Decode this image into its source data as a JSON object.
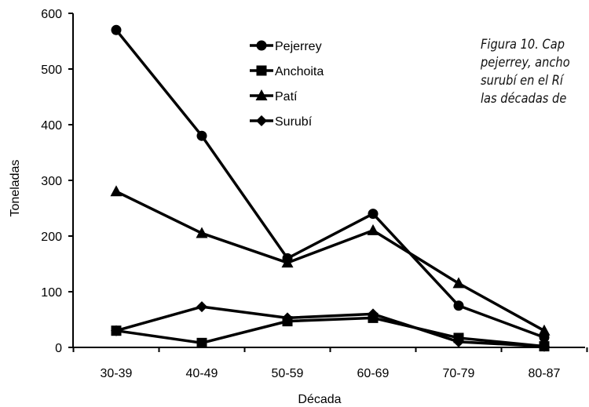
{
  "chart_data": {
    "type": "line",
    "categories": [
      "30-39",
      "40-49",
      "50-59",
      "60-69",
      "70-79",
      "80-87"
    ],
    "series": [
      {
        "name": "Pejerrey",
        "marker": "circle",
        "values": [
          570,
          380,
          160,
          240,
          75,
          18
        ]
      },
      {
        "name": "Anchoita",
        "marker": "square",
        "values": [
          30,
          8,
          47,
          53,
          17,
          2
        ]
      },
      {
        "name": "Patí",
        "marker": "triangle",
        "values": [
          280,
          205,
          152,
          210,
          115,
          30
        ]
      },
      {
        "name": "Surubí",
        "marker": "diamond",
        "values": [
          30,
          73,
          53,
          60,
          10,
          2
        ]
      }
    ],
    "xlabel": "Década",
    "ylabel": "Toneladas",
    "ylim": [
      0,
      600
    ],
    "yticks": [
      0,
      100,
      200,
      300,
      400,
      500,
      600
    ],
    "legend_position": "top-center",
    "grid": false,
    "line_color": "#000000"
  },
  "caption_lines": [
    "Figura 10. Cap",
    "pejerrey, ancho",
    "surubí en el Rí",
    "las décadas de"
  ]
}
